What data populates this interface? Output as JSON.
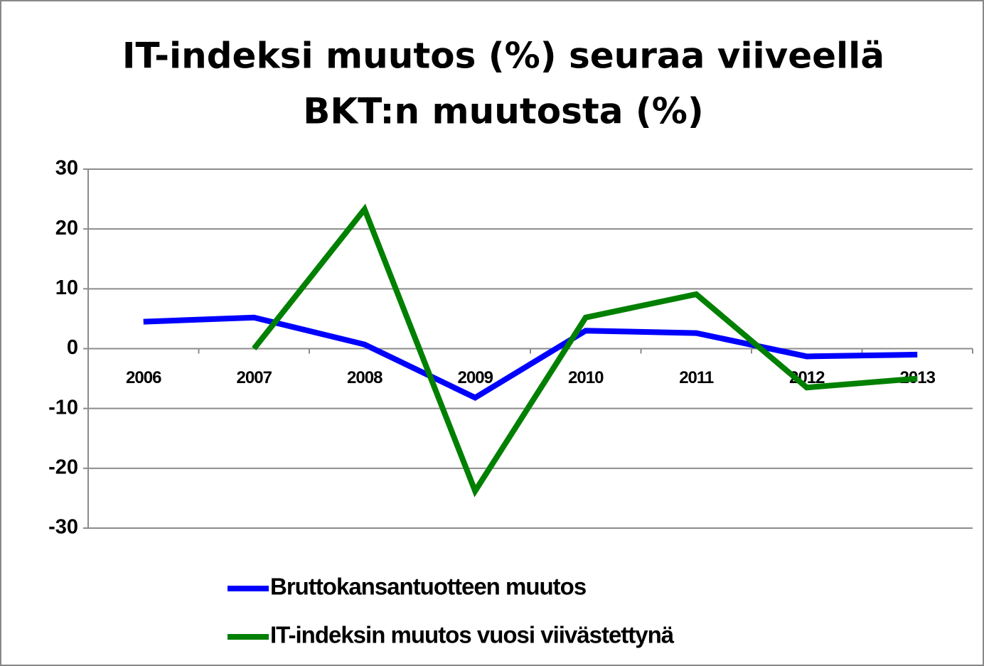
{
  "chart_data": {
    "type": "line",
    "title": [
      "IT-indeksi muutos (%) seuraa viiveellä",
      "BKT:n muutosta (%)"
    ],
    "categories": [
      "2006",
      "2007",
      "2008",
      "2009",
      "2010",
      "2011",
      "2012",
      "2013"
    ],
    "series": [
      {
        "name": "Bruttokansantuotteen muutos",
        "color": "#0000ff",
        "values": [
          4.5,
          5.2,
          0.7,
          -8.2,
          3.0,
          2.6,
          -1.3,
          -1.0
        ]
      },
      {
        "name": "IT-indeksin muutos vuosi viivästettynä",
        "color": "#008000",
        "values": [
          null,
          0,
          23.3,
          -23.8,
          5.2,
          9.1,
          -6.5,
          -5.0
        ]
      }
    ],
    "ylim": [
      -30,
      30
    ],
    "yticks": [
      -30,
      -20,
      -10,
      0,
      10,
      20,
      30
    ],
    "grid": true,
    "legend": "bottom"
  }
}
